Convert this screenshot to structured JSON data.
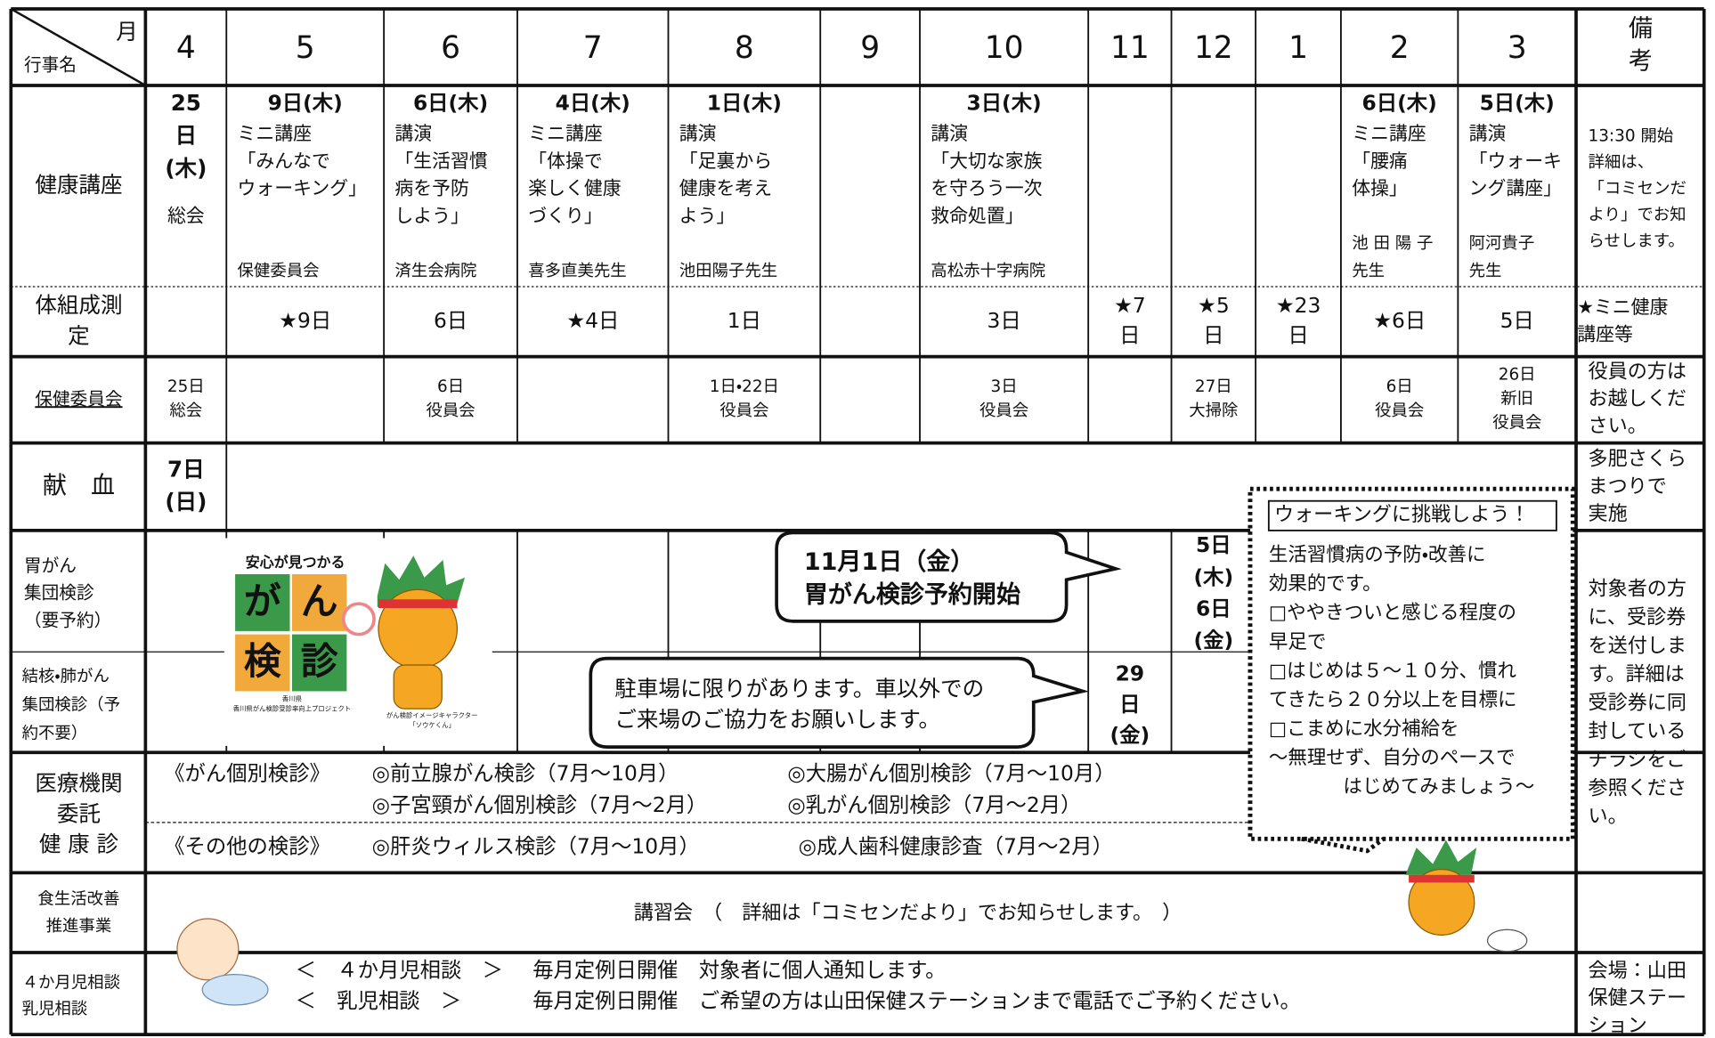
{
  "header": {
    "corner_month": "月",
    "corner_event": "行事名",
    "months": [
      "4",
      "5",
      "6",
      "7",
      "8",
      "9",
      "10",
      "11",
      "12",
      "1",
      "2",
      "3"
    ],
    "notes": [
      "備",
      "考"
    ]
  },
  "lecture": {
    "label": "健康講座",
    "cells": [
      {
        "date": [
          "25",
          "日",
          "(木)"
        ],
        "lines": [
          "総会"
        ]
      },
      {
        "date": [
          "9日(木)"
        ],
        "lines": [
          "ミニ講座",
          "「みんなで",
          "ウォーキング」"
        ],
        "footer": [
          "保健委員会"
        ]
      },
      {
        "date": [
          "6日(木)"
        ],
        "lines": [
          "講演",
          "「生活習慣",
          "病を予防",
          "しよう」"
        ],
        "footer": [
          "済生会病院"
        ]
      },
      {
        "date": [
          "4日(木)"
        ],
        "lines": [
          "ミニ講座",
          "「体操で",
          "楽しく健康",
          "づくり」"
        ],
        "footer": [
          "喜多直美先生"
        ]
      },
      {
        "date": [
          "1日(木)"
        ],
        "lines": [
          "講演",
          "「足裏から",
          "健康を考え",
          "よう」"
        ],
        "footer": [
          "池田陽子先生"
        ]
      },
      null,
      {
        "date": [
          "3日(木)"
        ],
        "lines": [
          "講演",
          "「大切な家族",
          "を守ろう一次",
          "救命処置」"
        ],
        "footer": [
          "高松赤十字病院"
        ]
      },
      null,
      null,
      null,
      {
        "date": [
          "6日(木)"
        ],
        "lines": [
          "ミニ講座",
          "「腰痛",
          "体操」"
        ],
        "footer": [
          "池 田 陽 子",
          "先生"
        ]
      },
      {
        "date": [
          "5日(木)"
        ],
        "lines": [
          "講演",
          "「ウォーキ",
          "ング講座」"
        ],
        "footer": [
          "阿河貴子",
          "先生"
        ]
      }
    ],
    "note": [
      "13:30 開始",
      "詳細は、",
      "「コミセンだ",
      "より」でお知",
      "らせします。"
    ]
  },
  "body_comp": {
    "label": [
      "体組成測",
      "定"
    ],
    "cells": [
      null,
      [
        "★9日"
      ],
      [
        "6日"
      ],
      [
        "★4日"
      ],
      [
        "1日"
      ],
      null,
      [
        "3日"
      ],
      [
        "★7",
        "日"
      ],
      [
        "★5",
        "日"
      ],
      [
        "★23",
        "日"
      ],
      [
        "★6日"
      ],
      [
        "5日"
      ]
    ],
    "note": [
      "★ミニ健康",
      "講座等"
    ]
  },
  "committee": {
    "label": "保健委員会",
    "cells": [
      [
        "25日",
        "総会"
      ],
      null,
      [
        "6日",
        "役員会"
      ],
      null,
      [
        "1日・22日",
        "役員会"
      ],
      null,
      [
        "3日",
        "役員会"
      ],
      null,
      [
        "27日",
        "大掃除"
      ],
      null,
      [
        "6日",
        "役員会"
      ],
      [
        "26日",
        "新旧",
        "役員会"
      ]
    ],
    "note": [
      "役員の方は",
      "お越しくだ",
      "さい。"
    ]
  },
  "blood": {
    "label": "献　血",
    "date": [
      "7日",
      "(日)"
    ],
    "note": [
      "多肥さくら",
      "まつりで",
      "実施"
    ]
  },
  "stomach": {
    "label": [
      "胃がん",
      "集団検診",
      "（要予約）"
    ],
    "date": [
      "5日",
      "(木)",
      "6日",
      "(金)"
    ]
  },
  "lung": {
    "label": [
      "結核・肺がん",
      "集団検診（予",
      "約不要）"
    ],
    "date": [
      "29",
      "日",
      "(金)"
    ]
  },
  "screening_note": [
    "対象者の方",
    "に、受診券",
    "を送付しま",
    "す。詳細は",
    "受診券に同",
    "封している",
    "チラシをご",
    "参照くださ",
    "い。"
  ],
  "medical": {
    "label": [
      "医療機関",
      "委託",
      "健 康 診"
    ],
    "groups": [
      {
        "heading": "《がん個別検診》",
        "items": [
          "◎前立腺がん検診（7月～10月）",
          "◎大腸がん個別検診（7月～10月）",
          "◎子宮頸がん個別検診（7月～2月）",
          "◎乳がん個別検診（7月～2月）"
        ]
      },
      {
        "heading": "《その他の検診》",
        "items": [
          "◎肝炎ウィルス検診（7月～10月）",
          "◎成人歯科健康診査（7月～2月）"
        ]
      }
    ]
  },
  "diet": {
    "label": [
      "食生活改善",
      "推進事業"
    ],
    "text": "講習会　（　詳細は「コミセンだより」でお知らせします。　）"
  },
  "consult": {
    "label": [
      "４か月児相談",
      "乳児相談"
    ],
    "rows": [
      [
        "＜　４か月児相談　＞",
        "毎月定例日開催　対象者に個人通知します。"
      ],
      [
        "＜　乳児相談　＞",
        "毎月定例日開催　ご希望の方は山田保健ステーションまで電話でご予約ください。"
      ]
    ],
    "note": [
      "会場：山田",
      "保健ステー",
      "ション"
    ]
  },
  "callouts": [
    [
      "11月1日（金）",
      "胃がん検診予約開始"
    ],
    [
      "駐車場に限りがあります。車以外での",
      "ご来場のご協力をお願いします。"
    ]
  ],
  "walking": {
    "title": "ウォーキングに挑戦しよう！",
    "lines": [
      "生活習慣病の予防・改善に",
      "効果的です。",
      "□ややきついと感じる程度の",
      "早足で",
      "□はじめは５～１０分、慣れ",
      "てきたら２０分以上を目標に",
      "□こまめに水分補給を",
      "～無理せず、自分のペースで",
      "はじめてみましょう～"
    ]
  },
  "logo": {
    "tagline": "安心が見つかる",
    "tiles": [
      "が",
      "ん",
      "検",
      "診"
    ],
    "org": [
      "香川県",
      "香川県がん検診受診率向上プロジェクト"
    ],
    "mascot": [
      "がん検診イメージキャラクター",
      "「ソウケくん」"
    ]
  }
}
